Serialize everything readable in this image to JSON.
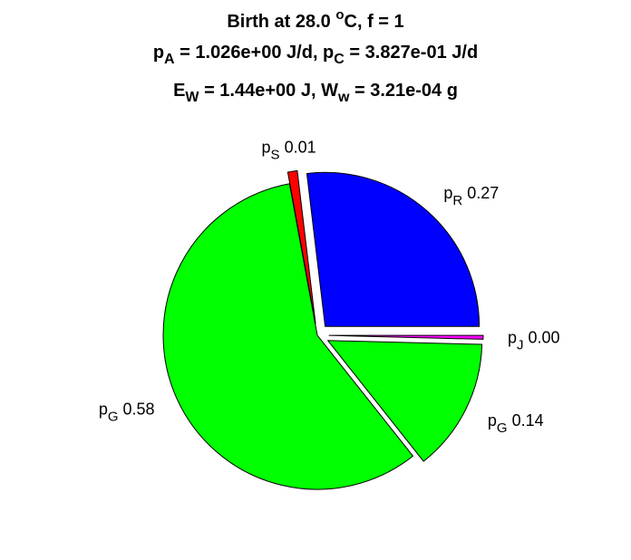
{
  "chart_data": {
    "type": "pie",
    "title": [
      [
        {
          "t": "Birth at 28.0 "
        },
        {
          "t": "o",
          "sup": true
        },
        {
          "t": "C, f = 1"
        }
      ],
      [
        {
          "t": "p"
        },
        {
          "t": "A",
          "sub": true
        },
        {
          "t": " = 1.026e+00 J/d, p"
        },
        {
          "t": "C",
          "sub": true
        },
        {
          "t": " = 3.827e-01 J/d"
        }
      ],
      [
        {
          "t": "E"
        },
        {
          "t": "W",
          "sub": true
        },
        {
          "t": " = 1.44e+00 J, W"
        },
        {
          "t": "w",
          "sub": true
        },
        {
          "t": " = 3.21e-04 g"
        }
      ]
    ],
    "start_angle_deg": 0,
    "direction": "counterclockwise",
    "slices": [
      {
        "symbol": "p",
        "subscript": "R",
        "value": 0.27,
        "label": "0.27",
        "color": "#0000ff",
        "exploded": true
      },
      {
        "symbol": "p",
        "subscript": "S",
        "value": 0.01,
        "label": "0.01",
        "color": "#ff0000",
        "exploded": true
      },
      {
        "symbol": "p",
        "subscript": "G",
        "value": 0.58,
        "label": "0.58",
        "color": "#00ff00",
        "exploded": false
      },
      {
        "symbol": "p",
        "subscript": "G",
        "value": 0.14,
        "label": "0.14",
        "color": "#00ff00",
        "exploded": true
      },
      {
        "symbol": "p",
        "subscript": "J",
        "value": 0.004,
        "label": "0.00",
        "color": "#ff00ff",
        "exploded": true
      }
    ]
  }
}
